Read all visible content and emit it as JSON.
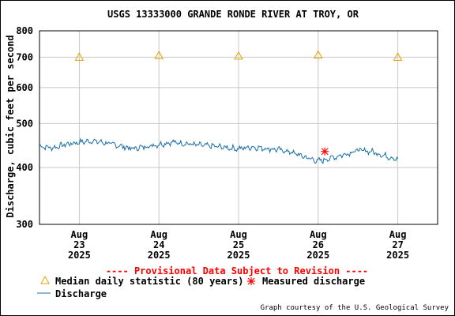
{
  "chart_data": {
    "type": "line",
    "title": "USGS 13333000 GRANDE RONDE RIVER AT TROY, OR",
    "ylabel": "Discharge, cubic feet per second",
    "y_scale": "log",
    "ylim": [
      300,
      800
    ],
    "y_ticks": [
      300,
      400,
      500,
      600,
      700,
      800
    ],
    "x_range": [
      "2025-08-22T12:00",
      "2025-08-27T12:00"
    ],
    "x_ticks": [
      {
        "date": "2025-08-23",
        "month": "Aug",
        "day": "23",
        "year": "2025"
      },
      {
        "date": "2025-08-24",
        "month": "Aug",
        "day": "24",
        "year": "2025"
      },
      {
        "date": "2025-08-25",
        "month": "Aug",
        "day": "25",
        "year": "2025"
      },
      {
        "date": "2025-08-26",
        "month": "Aug",
        "day": "26",
        "year": "2025"
      },
      {
        "date": "2025-08-27",
        "month": "Aug",
        "day": "27",
        "year": "2025"
      }
    ],
    "grid": true,
    "series": [
      {
        "name": "Discharge",
        "color": "#1a6fa6",
        "x": [
          "2025-08-22T12:00",
          "2025-08-22T16:00",
          "2025-08-22T20:00",
          "2025-08-23T00:00",
          "2025-08-23T04:00",
          "2025-08-23T08:00",
          "2025-08-23T12:00",
          "2025-08-23T16:00",
          "2025-08-23T20:00",
          "2025-08-24T00:00",
          "2025-08-24T04:00",
          "2025-08-24T08:00",
          "2025-08-24T12:00",
          "2025-08-24T16:00",
          "2025-08-24T20:00",
          "2025-08-25T00:00",
          "2025-08-25T04:00",
          "2025-08-25T08:00",
          "2025-08-25T12:00",
          "2025-08-25T16:00",
          "2025-08-25T20:00",
          "2025-08-26T00:00",
          "2025-08-26T04:00",
          "2025-08-26T08:00",
          "2025-08-26T12:00",
          "2025-08-26T16:00",
          "2025-08-26T20:00",
          "2025-08-27T00:00"
        ],
        "y": [
          446,
          442,
          450,
          455,
          458,
          453,
          447,
          440,
          445,
          450,
          455,
          452,
          448,
          446,
          443,
          440,
          444,
          441,
          438,
          432,
          422,
          413,
          420,
          428,
          437,
          434,
          425,
          418
        ]
      }
    ],
    "median_daily_statistic": {
      "name": "Median daily statistic (80 years)",
      "color": "#e6a000",
      "points": [
        {
          "date": "2025-08-23",
          "value": 700
        },
        {
          "date": "2025-08-24",
          "value": 706
        },
        {
          "date": "2025-08-25",
          "value": 704
        },
        {
          "date": "2025-08-26",
          "value": 708
        },
        {
          "date": "2025-08-27",
          "value": 700
        }
      ]
    },
    "measured_discharge": {
      "name": "Measured discharge",
      "color": "#ff0000",
      "points": [
        {
          "date": "2025-08-26T02:00",
          "value": 434
        }
      ]
    }
  },
  "provisional_text": "---- Provisional Data Subject to Revision ----",
  "legend": {
    "median_label": "Median daily statistic (80 years)",
    "measured_label": "Measured discharge",
    "discharge_label": "Discharge"
  },
  "credit": "Graph courtesy of the U.S. Geological Survey"
}
